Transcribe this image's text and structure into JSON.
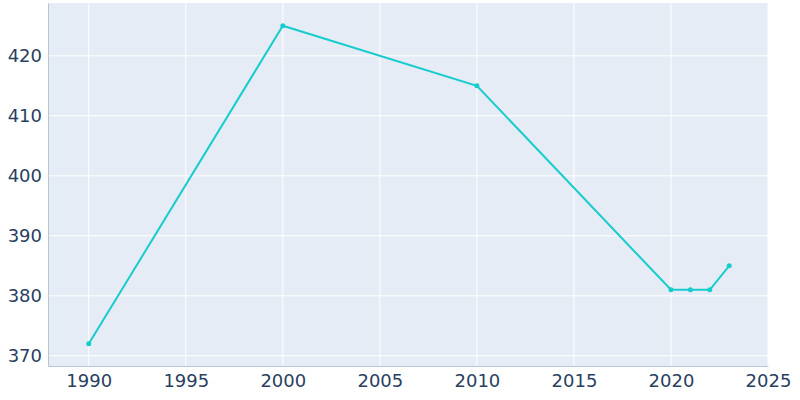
{
  "chart_data": {
    "type": "line",
    "x": [
      1990,
      2000,
      2010,
      2020,
      2021,
      2022,
      2023
    ],
    "values": [
      372,
      425,
      415,
      381,
      381,
      381,
      385
    ],
    "color": "#17cccc",
    "marker": "circle",
    "xlim": [
      1987.9,
      2025
    ],
    "xticks": [
      1990,
      1995,
      2000,
      2005,
      2010,
      2015,
      2020,
      2025
    ],
    "ylim": [
      368.3,
      428.8
    ],
    "yticks": [
      370,
      380,
      390,
      400,
      410,
      420
    ],
    "grid": true
  }
}
